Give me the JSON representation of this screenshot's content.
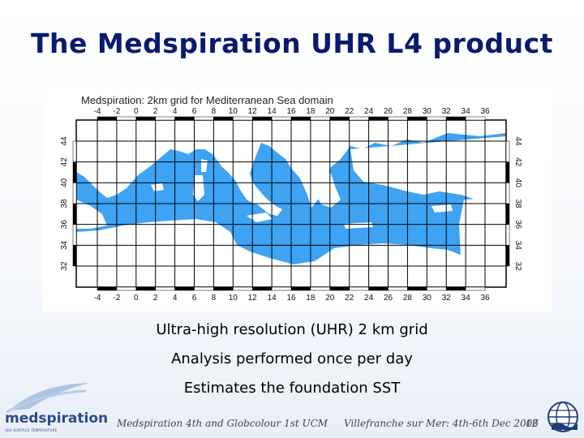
{
  "slide": {
    "title": "The Medspiration UHR L4 product",
    "bullets": [
      "Ultra-high resolution (UHR) 2 km grid",
      "Analysis performed once per day",
      "Estimates the foundation SST"
    ],
    "footer_left": "Medspiration 4th and Globcolour 1st UCM",
    "footer_right": "Villefranche sur Mer: 4th-6th Dec 2006",
    "page_number": "12",
    "logo_text": "medspiration",
    "logo_subtext": "SEA SURFACE TEMPERATURE"
  },
  "map": {
    "title": "Medspiration:  2km grid for Mediterranean Sea domain",
    "lon_labels": [
      "-4",
      "-2",
      "0",
      "2",
      "4",
      "6",
      "8",
      "10",
      "12",
      "14",
      "16",
      "18",
      "20",
      "22",
      "24",
      "26",
      "28",
      "30",
      "32",
      "34",
      "36"
    ],
    "lat_labels": [
      "32",
      "34",
      "36",
      "38",
      "40",
      "42",
      "44"
    ],
    "sea_color": "#3ea3f3",
    "land_color": "#ffffff",
    "grid_color": "#000000"
  }
}
